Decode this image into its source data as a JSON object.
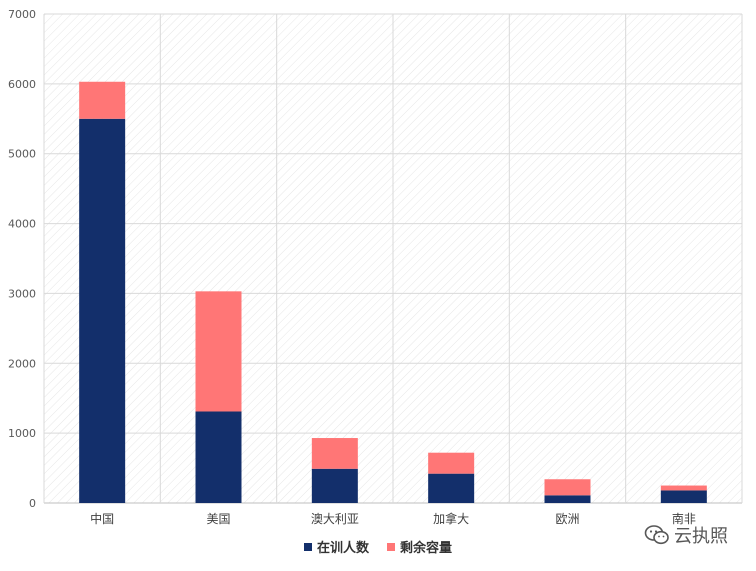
{
  "chart_data": {
    "type": "bar",
    "stacked": true,
    "categories": [
      "中国",
      "美国",
      "澳大利亚",
      "加拿大",
      "欧洲",
      "南非"
    ],
    "series": [
      {
        "name": "在训人数",
        "values": [
          5500,
          1310,
          490,
          420,
          110,
          180
        ],
        "color": "#132f6b"
      },
      {
        "name": "剩余容量",
        "values": [
          530,
          1720,
          440,
          300,
          230,
          70
        ],
        "color": "#ff7676"
      }
    ],
    "y_ticks": [
      0,
      1000,
      2000,
      3000,
      4000,
      5000,
      6000,
      7000
    ],
    "ylim": [
      0,
      7000
    ],
    "grid": true,
    "legend_position": "bottom-center"
  },
  "watermark": {
    "text": "云执照",
    "icon": "wechat-icon"
  }
}
